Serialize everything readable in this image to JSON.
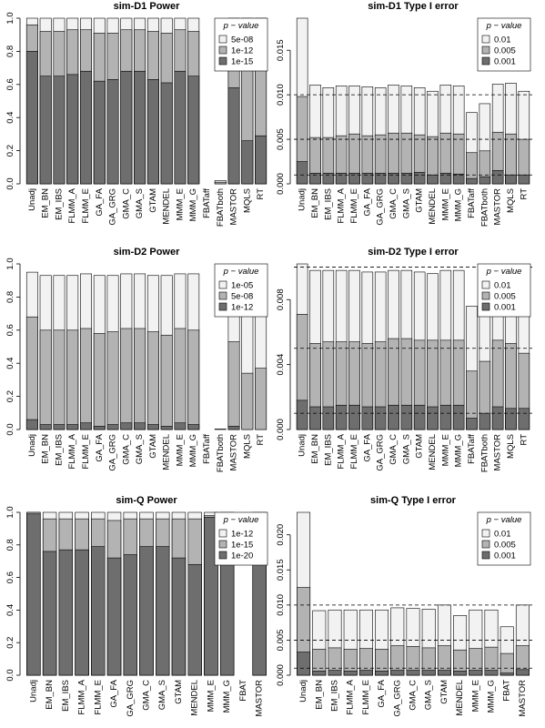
{
  "chart_data": [
    {
      "type": "bar",
      "title": "sim-D1 Power",
      "legend_title": "p − value",
      "categories": [
        "Unadj",
        "EM_BN",
        "EM_IBS",
        "FLMM_A",
        "FLMM_E",
        "GA_FA",
        "GA_GRG",
        "GMA_C",
        "GMA_S",
        "GTAM",
        "MENDEL",
        "MMM_E",
        "MMM_G",
        "FBATaff",
        "FBATboth",
        "MASTOR",
        "MQLS",
        "RT"
      ],
      "series": [
        {
          "name": "5e-08",
          "color": "#f2f2f2",
          "values": [
            1.0,
            1.0,
            1.0,
            1.0,
            1.0,
            1.0,
            1.0,
            1.0,
            1.0,
            1.0,
            1.0,
            1.0,
            1.0,
            0.0,
            0.02,
            1.0,
            1.0,
            1.0
          ]
        },
        {
          "name": "1e-12",
          "color": "#b3b3b3",
          "values": [
            0.96,
            0.92,
            0.92,
            0.93,
            0.93,
            0.91,
            0.91,
            0.93,
            0.93,
            0.92,
            0.91,
            0.93,
            0.92,
            0.0,
            0.01,
            0.9,
            0.76,
            0.79
          ]
        },
        {
          "name": "1e-15",
          "color": "#6e6e6e",
          "values": [
            0.8,
            0.65,
            0.65,
            0.66,
            0.68,
            0.62,
            0.63,
            0.68,
            0.68,
            0.63,
            0.61,
            0.68,
            0.65,
            0.0,
            0.0,
            0.58,
            0.26,
            0.29
          ]
        }
      ],
      "ylim": [
        0,
        1
      ],
      "yticks": [
        {
          "value": 0,
          "label": "0.0"
        },
        0.2,
        0.4,
        0.6,
        0.8,
        {
          "value": 1,
          "label": "1.0"
        }
      ]
    },
    {
      "type": "bar",
      "title": "sim-D1 Type I error",
      "legend_title": "p − value",
      "categories": [
        "Unadj",
        "EM_BN",
        "EM_IBS",
        "FLMM_A",
        "FLMM_E",
        "GA_FA",
        "GA_GRG",
        "GMA_C",
        "GMA_S",
        "GTAM",
        "MENDEL",
        "MMM_E",
        "MMM_G",
        "FBATaff",
        "FBATboth",
        "MASTOR",
        "MQLS",
        "RT"
      ],
      "series": [
        {
          "name": "0.01",
          "color": "#f2f2f2",
          "values": [
            0.0186,
            0.0111,
            0.0108,
            0.011,
            0.011,
            0.0109,
            0.0108,
            0.0111,
            0.011,
            0.0108,
            0.0104,
            0.0111,
            0.011,
            0.008,
            0.009,
            0.0112,
            0.0113,
            0.0104
          ]
        },
        {
          "name": "0.005",
          "color": "#b3b3b3",
          "values": [
            0.0098,
            0.0052,
            0.0052,
            0.0054,
            0.0056,
            0.0054,
            0.0055,
            0.0057,
            0.0057,
            0.0055,
            0.0053,
            0.0057,
            0.0056,
            0.0035,
            0.0037,
            0.0058,
            0.0056,
            0.005
          ]
        },
        {
          "name": "0.001",
          "color": "#6e6e6e",
          "values": [
            0.0025,
            0.0012,
            0.0012,
            0.0012,
            0.0012,
            0.0012,
            0.0012,
            0.0012,
            0.0012,
            0.0013,
            0.001,
            0.0012,
            0.0011,
            0.0006,
            0.0008,
            0.0015,
            0.001,
            0.001
          ]
        }
      ],
      "ylim": [
        0,
        0.0186
      ],
      "yticks": [
        {
          "value": 0,
          "label": "0.000"
        },
        0.005,
        {
          "value": 0.01,
          "label": "0.010"
        },
        0.015
      ],
      "hlines": [
        0.01,
        0.005,
        0.001
      ]
    },
    {
      "type": "bar",
      "title": "sim-D2 Power",
      "legend_title": "p − value",
      "categories": [
        "Unadj",
        "EM_BN",
        "EM_IBS",
        "FLMM_A",
        "FLMM_E",
        "GA_FA",
        "GA_GRG",
        "GMA_C",
        "GMA_S",
        "GTAM",
        "MENDEL",
        "MMM_E",
        "MMM_G",
        "FBATaff",
        "FBATboth",
        "MASTOR",
        "MQLS",
        "RT"
      ],
      "series": [
        {
          "name": "1e-05",
          "color": "#f2f2f2",
          "values": [
            0.95,
            0.93,
            0.93,
            0.93,
            0.94,
            0.93,
            0.93,
            0.94,
            0.94,
            0.93,
            0.93,
            0.94,
            0.94,
            0.0,
            0.003,
            0.92,
            0.83,
            0.85
          ]
        },
        {
          "name": "5e-08",
          "color": "#b3b3b3",
          "values": [
            0.68,
            0.6,
            0.6,
            0.6,
            0.61,
            0.58,
            0.59,
            0.61,
            0.61,
            0.59,
            0.57,
            0.61,
            0.6,
            0.0,
            0.0,
            0.53,
            0.34,
            0.37
          ]
        },
        {
          "name": "1e-12",
          "color": "#6e6e6e",
          "values": [
            0.06,
            0.03,
            0.03,
            0.03,
            0.04,
            0.02,
            0.03,
            0.04,
            0.04,
            0.03,
            0.02,
            0.04,
            0.03,
            0.0,
            0.0,
            0.02,
            0.0,
            0.0
          ]
        }
      ],
      "ylim": [
        0,
        1
      ],
      "yticks": [
        {
          "value": 0,
          "label": "0.0"
        },
        0.2,
        0.4,
        0.6,
        0.8,
        {
          "value": 1,
          "label": "1.0"
        }
      ]
    },
    {
      "type": "bar",
      "title": "sim-D2 Type I error",
      "legend_title": "p − value",
      "categories": [
        "Unadj",
        "EM_BN",
        "EM_IBS",
        "FLMM_A",
        "FLMM_E",
        "GA_FA",
        "GA_GRG",
        "GMA_C",
        "GMA_S",
        "GTAM",
        "MENDEL",
        "MMM_E",
        "MMM_G",
        "FBATaff",
        "FBATboth",
        "MASTOR",
        "MQLS",
        "RT"
      ],
      "series": [
        {
          "name": "0.01",
          "color": "#f2f2f2",
          "values": [
            0.0102,
            0.0098,
            0.0098,
            0.0098,
            0.0098,
            0.0097,
            0.0097,
            0.0098,
            0.0098,
            0.0097,
            0.0096,
            0.0098,
            0.0098,
            0.0076,
            0.0084,
            0.0099,
            0.0098,
            0.0091
          ]
        },
        {
          "name": "0.005",
          "color": "#b3b3b3",
          "values": [
            0.0071,
            0.0053,
            0.0054,
            0.0054,
            0.0054,
            0.0053,
            0.0054,
            0.0056,
            0.0056,
            0.0055,
            0.0055,
            0.0055,
            0.0055,
            0.0036,
            0.0042,
            0.0055,
            0.0053,
            0.0047
          ]
        },
        {
          "name": "0.001",
          "color": "#6e6e6e",
          "values": [
            0.0018,
            0.0014,
            0.0014,
            0.0015,
            0.0015,
            0.0014,
            0.0014,
            0.0015,
            0.0015,
            0.0015,
            0.0014,
            0.0015,
            0.0015,
            0.0007,
            0.001,
            0.0014,
            0.0013,
            0.0013
          ]
        }
      ],
      "ylim": [
        0,
        0.0102
      ],
      "yticks": [
        {
          "value": 0,
          "label": "0.000"
        },
        0.004,
        0.008
      ],
      "hlines": [
        0.01,
        0.005,
        0.001
      ]
    },
    {
      "type": "bar",
      "title": "sim-Q Power",
      "legend_title": "p − value",
      "categories": [
        "Unadj",
        "EM_BN",
        "EM_IBS",
        "FLMM_A",
        "FLMM_E",
        "GA_FA",
        "GA_GRG",
        "GMA_C",
        "GMA_S",
        "GTAM",
        "MENDEL",
        "MMM_E",
        "MMM_G",
        "FBAT",
        "MASTOR"
      ],
      "series": [
        {
          "name": "1e-12",
          "color": "#f2f2f2",
          "values": [
            1.0,
            1.0,
            1.0,
            1.0,
            1.0,
            1.0,
            1.0,
            1.0,
            1.0,
            1.0,
            1.0,
            1.0,
            1.0,
            0.0,
            1.0
          ]
        },
        {
          "name": "1e-15",
          "color": "#b3b3b3",
          "values": [
            1.0,
            0.96,
            0.96,
            0.96,
            0.96,
            0.95,
            0.96,
            0.96,
            0.96,
            0.96,
            0.96,
            0.98,
            0.98,
            0.0,
            0.97
          ]
        },
        {
          "name": "1e-20",
          "color": "#6e6e6e",
          "values": [
            0.99,
            0.76,
            0.77,
            0.77,
            0.79,
            0.72,
            0.74,
            0.79,
            0.79,
            0.72,
            0.68,
            0.97,
            0.96,
            0.0,
            0.69
          ]
        }
      ],
      "ylim": [
        0,
        1
      ],
      "yticks": [
        {
          "value": 0,
          "label": "0.0"
        },
        0.2,
        0.4,
        0.6,
        0.8,
        {
          "value": 1,
          "label": "1.0"
        }
      ]
    },
    {
      "type": "bar",
      "title": "sim-Q Type I error",
      "legend_title": "p − value",
      "categories": [
        "Unadj",
        "EM_BN",
        "EM_IBS",
        "FLMM_A",
        "FLMM_E",
        "GA_FA",
        "GA_GRG",
        "GMA_C",
        "GMA_S",
        "GTAM",
        "MENDEL",
        "MMM_E",
        "MMM_G",
        "FBAT",
        "MASTOR"
      ],
      "series": [
        {
          "name": "0.01",
          "color": "#f2f2f2",
          "values": [
            0.0232,
            0.0092,
            0.0093,
            0.0093,
            0.0093,
            0.0093,
            0.0096,
            0.0095,
            0.0094,
            0.01,
            0.0085,
            0.0093,
            0.0093,
            0.0069,
            0.01
          ]
        },
        {
          "name": "0.005",
          "color": "#b3b3b3",
          "values": [
            0.0125,
            0.0037,
            0.0039,
            0.0037,
            0.0038,
            0.0037,
            0.0042,
            0.0041,
            0.0039,
            0.0042,
            0.0036,
            0.0038,
            0.004,
            0.0031,
            0.0042
          ]
        },
        {
          "name": "0.001",
          "color": "#6e6e6e",
          "values": [
            0.0033,
            0.0006,
            0.0007,
            0.0006,
            0.0007,
            0.0006,
            0.0007,
            0.0007,
            0.0007,
            0.0007,
            0.0006,
            0.0007,
            0.0007,
            0.0003,
            0.0008
          ]
        }
      ],
      "ylim": [
        0,
        0.0232
      ],
      "yticks": [
        {
          "value": 0,
          "label": "0.000"
        },
        0.005,
        {
          "value": 0.01,
          "label": "0.010"
        },
        0.015,
        {
          "value": 0.02,
          "label": "0.020"
        }
      ],
      "hlines": [
        0.01,
        0.005,
        0.001
      ]
    }
  ]
}
